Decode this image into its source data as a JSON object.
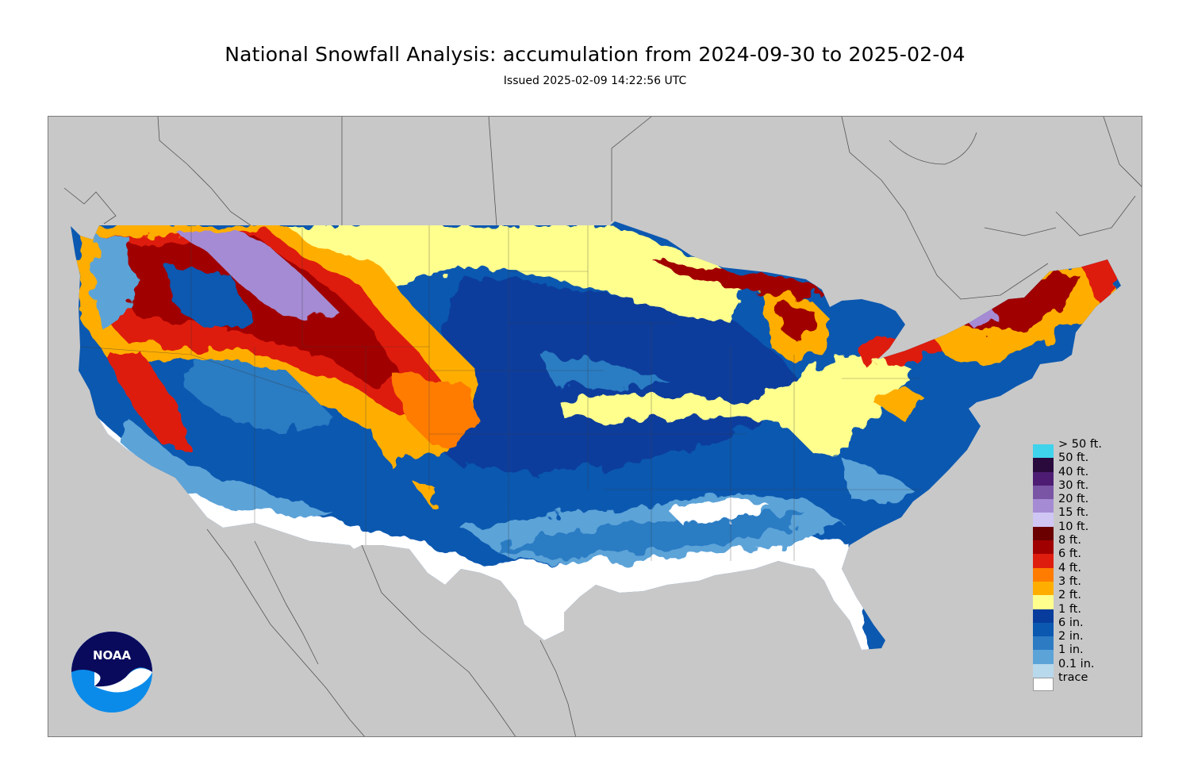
{
  "title": "National Snowfall Analysis: accumulation from 2024-09-30 to 2025-02-04",
  "subtitle": "Issued 2025-02-09 14:22:56 UTC",
  "map": {
    "land_color": "#c8c8c8",
    "water_color": "#c8c8c8",
    "border_color": "#555555"
  },
  "legend": {
    "entries": [
      {
        "label": "> 50 ft.",
        "color": "#3fd3ec"
      },
      {
        "label": "50 ft.",
        "color": "#2a0a3d"
      },
      {
        "label": "40 ft.",
        "color": "#4e1d73"
      },
      {
        "label": "30 ft.",
        "color": "#7a55a6"
      },
      {
        "label": "20 ft.",
        "color": "#a58bd3"
      },
      {
        "label": "15 ft.",
        "color": "#cfc6f4"
      },
      {
        "label": "10 ft.",
        "color": "#6b0000"
      },
      {
        "label": "8 ft.",
        "color": "#a10000"
      },
      {
        "label": "6 ft.",
        "color": "#de1d0e"
      },
      {
        "label": "4 ft.",
        "color": "#ff7c00"
      },
      {
        "label": "3 ft.",
        "color": "#ffae00"
      },
      {
        "label": "2 ft.",
        "color": "#ffff8e"
      },
      {
        "label": "1 ft.",
        "color": "#083c9c"
      },
      {
        "label": "6 in.",
        "color": "#0b58b0"
      },
      {
        "label": "2 in.",
        "color": "#2c7bc3"
      },
      {
        "label": "1 in.",
        "color": "#5ca3d8"
      },
      {
        "label": "0.1 in.",
        "color": "#b8d8ec"
      },
      {
        "label": "trace",
        "color": "#ffffff"
      }
    ]
  },
  "logo": {
    "text": "NOAA",
    "top_color": "#0a0a5c",
    "bottom_color": "#0a8bea"
  }
}
